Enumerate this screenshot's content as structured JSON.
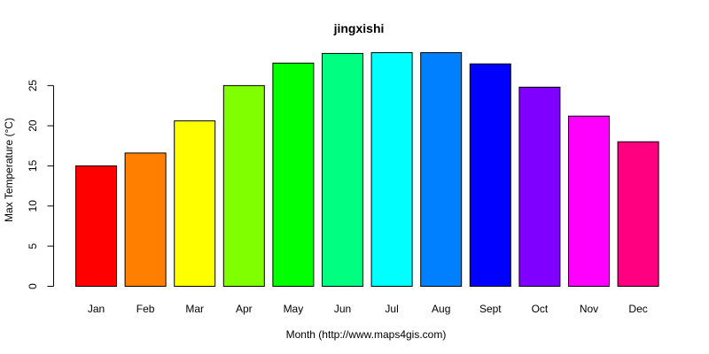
{
  "chart_data": {
    "type": "bar",
    "title": "jingxishi",
    "xlabel": "Month (http://www.maps4gis.com)",
    "ylabel": "Max Temperature (°C)",
    "categories": [
      "Jan",
      "Feb",
      "Mar",
      "Apr",
      "May",
      "Jun",
      "Jul",
      "Aug",
      "Sept",
      "Oct",
      "Nov",
      "Dec"
    ],
    "values": [
      15.0,
      16.6,
      20.6,
      25.0,
      27.8,
      29.0,
      29.1,
      29.1,
      27.7,
      24.8,
      21.2,
      18.0
    ],
    "colors": [
      "#FF0000",
      "#FF8000",
      "#FFFF00",
      "#80FF00",
      "#00FF00",
      "#00FF80",
      "#00FFFF",
      "#0080FF",
      "#0000FF",
      "#8000FF",
      "#FF00FF",
      "#FF0080"
    ],
    "yticks": [
      0,
      5,
      10,
      15,
      20,
      25
    ],
    "ylim": [
      0,
      29.1
    ],
    "grid": false,
    "legend": "none"
  }
}
